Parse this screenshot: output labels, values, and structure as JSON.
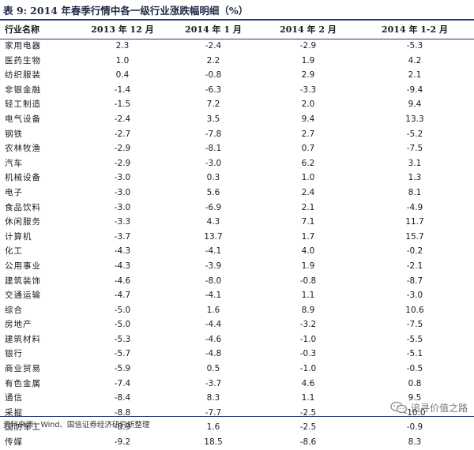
{
  "title": {
    "prefix": "表 9:",
    "text": "2014 年春季行情中各一级行业涨跌幅明细（%）"
  },
  "table": {
    "headers": [
      "行业名称",
      "2013 年 12 月",
      "2014 年 1 月",
      "2014 年 2 月",
      "2014 年 1-2 月"
    ],
    "rows": [
      [
        "家用电器",
        "2.3",
        "-2.4",
        "-2.9",
        "-5.3"
      ],
      [
        "医药生物",
        "1.0",
        "2.2",
        "1.9",
        "4.2"
      ],
      [
        "纺织服装",
        "0.4",
        "-0.8",
        "2.9",
        "2.1"
      ],
      [
        "非银金融",
        "-1.4",
        "-6.3",
        "-3.3",
        "-9.4"
      ],
      [
        "轻工制造",
        "-1.5",
        "7.2",
        "2.0",
        "9.4"
      ],
      [
        "电气设备",
        "-2.4",
        "3.5",
        "9.4",
        "13.3"
      ],
      [
        "钢铁",
        "-2.7",
        "-7.8",
        "2.7",
        "-5.2"
      ],
      [
        "农林牧渔",
        "-2.9",
        "-8.1",
        "0.7",
        "-7.5"
      ],
      [
        "汽车",
        "-2.9",
        "-3.0",
        "6.2",
        "3.1"
      ],
      [
        "机械设备",
        "-3.0",
        "0.3",
        "1.0",
        "1.3"
      ],
      [
        "电子",
        "-3.0",
        "5.6",
        "2.4",
        "8.1"
      ],
      [
        "食品饮料",
        "-3.0",
        "-6.9",
        "2.1",
        "-4.9"
      ],
      [
        "休闲服务",
        "-3.3",
        "4.3",
        "7.1",
        "11.7"
      ],
      [
        "计算机",
        "-3.7",
        "13.7",
        "1.7",
        "15.7"
      ],
      [
        "化工",
        "-4.3",
        "-4.1",
        "4.0",
        "-0.2"
      ],
      [
        "公用事业",
        "-4.3",
        "-3.9",
        "1.9",
        "-2.1"
      ],
      [
        "建筑装饰",
        "-4.6",
        "-8.0",
        "-0.8",
        "-8.7"
      ],
      [
        "交通运输",
        "-4.7",
        "-4.1",
        "1.1",
        "-3.0"
      ],
      [
        "综合",
        "-5.0",
        "1.6",
        "8.9",
        "10.6"
      ],
      [
        "房地产",
        "-5.0",
        "-4.4",
        "-3.2",
        "-7.5"
      ],
      [
        "建筑材料",
        "-5.3",
        "-4.6",
        "-1.0",
        "-5.5"
      ],
      [
        "银行",
        "-5.7",
        "-4.8",
        "-0.3",
        "-5.1"
      ],
      [
        "商业贸易",
        "-5.9",
        "0.5",
        "-1.0",
        "-0.5"
      ],
      [
        "有色金属",
        "-7.4",
        "-3.7",
        "4.6",
        "0.8"
      ],
      [
        "通信",
        "-8.4",
        "8.3",
        "1.1",
        "9.5"
      ],
      [
        "采掘",
        "-8.8",
        "-7.7",
        "-2.5",
        "-10.0"
      ],
      [
        "国防军工",
        "-8.9",
        "1.6",
        "-2.5",
        "-0.9"
      ],
      [
        "传媒",
        "-9.2",
        "18.5",
        "-8.6",
        "8.3"
      ]
    ]
  },
  "source": "资料来源：Wind、国信证券经济研究所整理",
  "watermark": {
    "text": "追寻价值之路",
    "icon": "wechat-icon"
  },
  "colors": {
    "rule": "#1f3b73",
    "title": "#1f2a44"
  }
}
